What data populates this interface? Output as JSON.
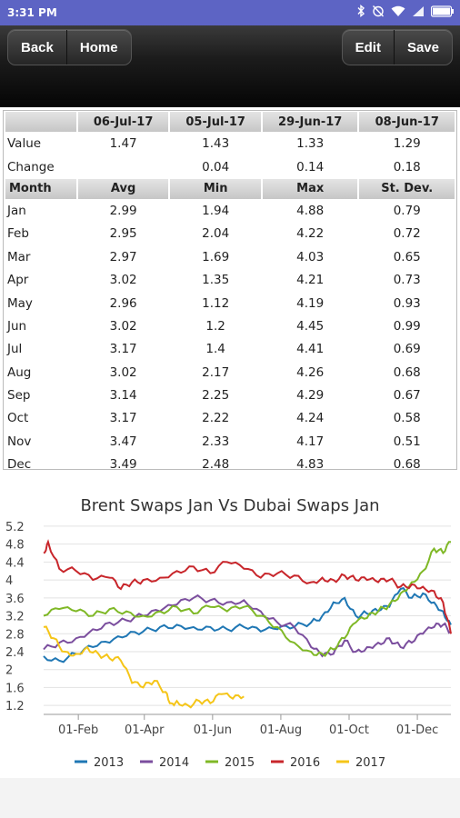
{
  "status": {
    "time": "3:31 PM"
  },
  "toolbar": {
    "back_label": "Back",
    "home_label": "Home",
    "edit_label": "Edit",
    "save_label": "Save"
  },
  "summary": {
    "headers": [
      "",
      "06-Jul-17",
      "05-Jul-17",
      "29-Jun-17",
      "08-Jun-17"
    ],
    "rows": [
      {
        "label": "Value",
        "cells": [
          "1.47",
          "1.43",
          "1.33",
          "1.29"
        ]
      },
      {
        "label": "Change",
        "cells": [
          "",
          "0.04",
          "0.14",
          "0.18"
        ]
      }
    ]
  },
  "monthly": {
    "headers": [
      "Month",
      "Avg",
      "Min",
      "Max",
      "St. Dev."
    ],
    "rows": [
      {
        "month": "Jan",
        "avg": "2.99",
        "min": "1.94",
        "max": "4.88",
        "sd": "0.79"
      },
      {
        "month": "Feb",
        "avg": "2.95",
        "min": "2.04",
        "max": "4.22",
        "sd": "0.72"
      },
      {
        "month": "Mar",
        "avg": "2.97",
        "min": "1.69",
        "max": "4.03",
        "sd": "0.65"
      },
      {
        "month": "Apr",
        "avg": "3.02",
        "min": "1.35",
        "max": "4.21",
        "sd": "0.73"
      },
      {
        "month": "May",
        "avg": "2.96",
        "min": "1.12",
        "max": "4.19",
        "sd": "0.93"
      },
      {
        "month": "Jun",
        "avg": "3.02",
        "min": "1.2",
        "max": "4.45",
        "sd": "0.99"
      },
      {
        "month": "Jul",
        "avg": "3.17",
        "min": "1.4",
        "max": "4.41",
        "sd": "0.69"
      },
      {
        "month": "Aug",
        "avg": "3.02",
        "min": "2.17",
        "max": "4.26",
        "sd": "0.68"
      },
      {
        "month": "Sep",
        "avg": "3.14",
        "min": "2.25",
        "max": "4.29",
        "sd": "0.67"
      },
      {
        "month": "Oct",
        "avg": "3.17",
        "min": "2.22",
        "max": "4.24",
        "sd": "0.58"
      },
      {
        "month": "Nov",
        "avg": "3.47",
        "min": "2.33",
        "max": "4.17",
        "sd": "0.51"
      },
      {
        "month": "Dec",
        "avg": "3.49",
        "min": "2.48",
        "max": "4.83",
        "sd": "0.68"
      }
    ]
  },
  "chart_data": {
    "type": "line",
    "title": "Brent Swaps Jan Vs Dubai Swaps Jan",
    "xlabel": "",
    "ylabel": "",
    "x_tick_labels": [
      "01-Feb",
      "01-Apr",
      "01-Jun",
      "01-Aug",
      "01-Oct",
      "01-Dec"
    ],
    "x_tick_days": [
      32,
      91,
      152,
      213,
      274,
      335
    ],
    "xlim_days": [
      1,
      365
    ],
    "y_ticks": [
      "5.2",
      "4.8",
      "4.4",
      "4",
      "3.6",
      "3.2",
      "2.8",
      "2.4",
      "2",
      "1.6",
      "1.2"
    ],
    "ylim": [
      1.0,
      5.3
    ],
    "grid": true,
    "legend": "bottom",
    "series": [
      {
        "name": "2013",
        "color": "#1f77b4",
        "points": [
          [
            1,
            2.3
          ],
          [
            15,
            2.2
          ],
          [
            30,
            2.35
          ],
          [
            45,
            2.5
          ],
          [
            60,
            2.6
          ],
          [
            75,
            2.75
          ],
          [
            90,
            2.85
          ],
          [
            105,
            2.95
          ],
          [
            120,
            3.0
          ],
          [
            135,
            2.95
          ],
          [
            150,
            2.95
          ],
          [
            165,
            2.9
          ],
          [
            180,
            2.95
          ],
          [
            195,
            2.85
          ],
          [
            210,
            2.9
          ],
          [
            225,
            2.95
          ],
          [
            240,
            3.05
          ],
          [
            250,
            3.2
          ],
          [
            260,
            3.5
          ],
          [
            270,
            3.6
          ],
          [
            280,
            3.2
          ],
          [
            290,
            3.25
          ],
          [
            300,
            3.3
          ],
          [
            310,
            3.4
          ],
          [
            320,
            3.8
          ],
          [
            330,
            3.6
          ],
          [
            340,
            3.7
          ],
          [
            350,
            3.5
          ],
          [
            358,
            3.3
          ],
          [
            365,
            3.0
          ]
        ]
      },
      {
        "name": "2014",
        "color": "#7b4e9e",
        "points": [
          [
            1,
            2.45
          ],
          [
            15,
            2.6
          ],
          [
            30,
            2.7
          ],
          [
            45,
            2.9
          ],
          [
            60,
            3.05
          ],
          [
            75,
            3.1
          ],
          [
            90,
            3.2
          ],
          [
            105,
            3.3
          ],
          [
            120,
            3.45
          ],
          [
            135,
            3.6
          ],
          [
            150,
            3.55
          ],
          [
            165,
            3.5
          ],
          [
            180,
            3.55
          ],
          [
            195,
            3.3
          ],
          [
            210,
            3.05
          ],
          [
            225,
            2.95
          ],
          [
            240,
            2.5
          ],
          [
            250,
            2.3
          ],
          [
            260,
            2.35
          ],
          [
            270,
            2.65
          ],
          [
            280,
            2.4
          ],
          [
            290,
            2.5
          ],
          [
            300,
            2.6
          ],
          [
            310,
            2.7
          ],
          [
            320,
            2.5
          ],
          [
            330,
            2.6
          ],
          [
            340,
            2.8
          ],
          [
            350,
            2.95
          ],
          [
            358,
            3.0
          ],
          [
            365,
            2.85
          ]
        ]
      },
      {
        "name": "2015",
        "color": "#7fb826",
        "points": [
          [
            1,
            3.2
          ],
          [
            15,
            3.35
          ],
          [
            30,
            3.3
          ],
          [
            45,
            3.2
          ],
          [
            60,
            3.35
          ],
          [
            75,
            3.3
          ],
          [
            90,
            3.2
          ],
          [
            105,
            3.3
          ],
          [
            120,
            3.4
          ],
          [
            135,
            3.25
          ],
          [
            150,
            3.4
          ],
          [
            165,
            3.3
          ],
          [
            180,
            3.4
          ],
          [
            195,
            3.2
          ],
          [
            210,
            2.95
          ],
          [
            225,
            2.6
          ],
          [
            240,
            2.4
          ],
          [
            250,
            2.35
          ],
          [
            260,
            2.45
          ],
          [
            270,
            2.7
          ],
          [
            280,
            3.05
          ],
          [
            290,
            3.15
          ],
          [
            300,
            3.3
          ],
          [
            310,
            3.45
          ],
          [
            320,
            3.7
          ],
          [
            330,
            3.95
          ],
          [
            340,
            4.2
          ],
          [
            350,
            4.7
          ],
          [
            358,
            4.6
          ],
          [
            365,
            4.85
          ]
        ]
      },
      {
        "name": "2016",
        "color": "#c8262b",
        "points": [
          [
            1,
            4.6
          ],
          [
            5,
            4.85
          ],
          [
            15,
            4.25
          ],
          [
            30,
            4.2
          ],
          [
            45,
            4.0
          ],
          [
            60,
            4.05
          ],
          [
            70,
            3.8
          ],
          [
            80,
            3.95
          ],
          [
            90,
            4.0
          ],
          [
            105,
            4.05
          ],
          [
            120,
            4.2
          ],
          [
            135,
            4.3
          ],
          [
            150,
            4.15
          ],
          [
            165,
            4.4
          ],
          [
            180,
            4.25
          ],
          [
            195,
            4.05
          ],
          [
            210,
            4.15
          ],
          [
            225,
            4.1
          ],
          [
            240,
            3.95
          ],
          [
            250,
            4.05
          ],
          [
            260,
            4.0
          ],
          [
            270,
            4.1
          ],
          [
            280,
            4.0
          ],
          [
            290,
            4.0
          ],
          [
            300,
            3.95
          ],
          [
            310,
            4.0
          ],
          [
            320,
            3.85
          ],
          [
            330,
            3.9
          ],
          [
            340,
            3.85
          ],
          [
            350,
            3.75
          ],
          [
            358,
            3.5
          ],
          [
            365,
            2.8
          ]
        ]
      },
      {
        "name": "2017",
        "color": "#f5c518",
        "points": [
          [
            1,
            2.95
          ],
          [
            10,
            2.7
          ],
          [
            20,
            2.4
          ],
          [
            30,
            2.35
          ],
          [
            40,
            2.5
          ],
          [
            50,
            2.35
          ],
          [
            60,
            2.25
          ],
          [
            70,
            2.2
          ],
          [
            80,
            1.7
          ],
          [
            90,
            1.6
          ],
          [
            100,
            1.75
          ],
          [
            110,
            1.5
          ],
          [
            115,
            1.25
          ],
          [
            120,
            1.3
          ],
          [
            130,
            1.2
          ],
          [
            140,
            1.3
          ],
          [
            150,
            1.25
          ],
          [
            160,
            1.45
          ],
          [
            170,
            1.35
          ],
          [
            180,
            1.4
          ]
        ]
      }
    ]
  }
}
